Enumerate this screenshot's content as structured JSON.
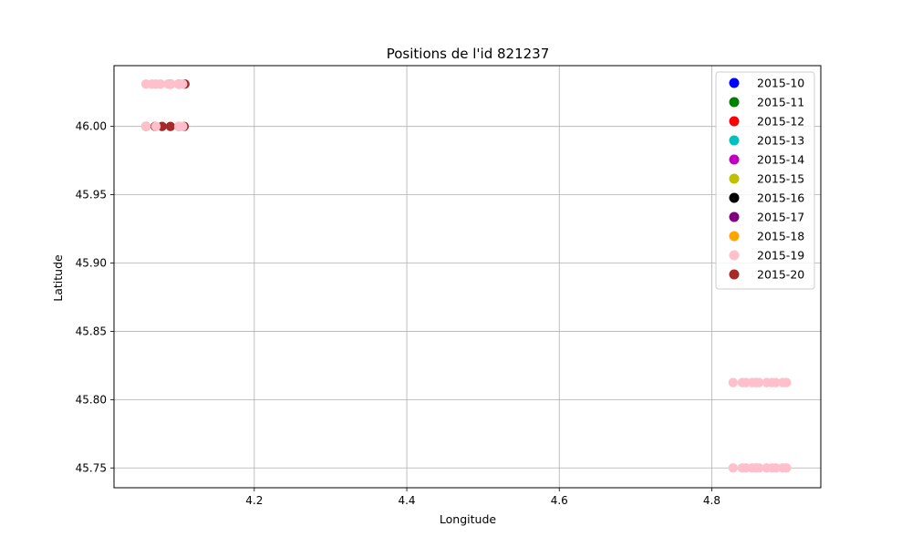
{
  "chart_data": {
    "type": "scatter",
    "title": "Positions de l'id 821237",
    "xlabel": "Longitude",
    "ylabel": "Latitude",
    "xlim": [
      4.016,
      4.943
    ],
    "ylim": [
      45.7355,
      46.0445
    ],
    "xticks": [
      4.2,
      4.4,
      4.6,
      4.8
    ],
    "xtick_labels": [
      "4.2",
      "4.4",
      "4.6",
      "4.8"
    ],
    "yticks": [
      45.75,
      45.8,
      45.85,
      45.9,
      45.95,
      46.0
    ],
    "ytick_labels": [
      "45.75",
      "45.80",
      "45.85",
      "45.90",
      "45.95",
      "46.00"
    ],
    "grid": true,
    "legend_position": "top-right",
    "series": [
      {
        "name": "2015-10",
        "color": "#0000ff",
        "points": []
      },
      {
        "name": "2015-11",
        "color": "#008000",
        "points": []
      },
      {
        "name": "2015-12",
        "color": "#ff0000",
        "points": []
      },
      {
        "name": "2015-13",
        "color": "#00bfbf",
        "points": []
      },
      {
        "name": "2015-14",
        "color": "#bf00bf",
        "points": []
      },
      {
        "name": "2015-15",
        "color": "#bfbf00",
        "points": []
      },
      {
        "name": "2015-16",
        "color": "#000000",
        "points": []
      },
      {
        "name": "2015-17",
        "color": "#800080",
        "points": []
      },
      {
        "name": "2015-18",
        "color": "#ffa500",
        "points": []
      },
      {
        "name": "2015-20",
        "color": "#a52a2a",
        "points": [
          [
            4.058,
            46.0
          ],
          [
            4.07,
            46.0
          ],
          [
            4.079,
            46.0
          ],
          [
            4.09,
            46.0
          ],
          [
            4.101,
            46.0
          ],
          [
            4.108,
            46.0
          ],
          [
            4.09,
            46.031
          ],
          [
            4.101,
            46.031
          ],
          [
            4.109,
            46.031
          ]
        ]
      },
      {
        "name": "2015-19",
        "color": "#ffc0cb",
        "points": [
          [
            4.058,
            46.031
          ],
          [
            4.066,
            46.031
          ],
          [
            4.071,
            46.031
          ],
          [
            4.077,
            46.031
          ],
          [
            4.087,
            46.031
          ],
          [
            4.091,
            46.031
          ],
          [
            4.101,
            46.031
          ],
          [
            4.106,
            46.031
          ],
          [
            4.058,
            46.0
          ],
          [
            4.071,
            46.0
          ],
          [
            4.101,
            46.0
          ],
          [
            4.106,
            46.0
          ],
          [
            4.828,
            45.8125
          ],
          [
            4.84,
            45.8125
          ],
          [
            4.845,
            45.8125
          ],
          [
            4.853,
            45.8125
          ],
          [
            4.858,
            45.8125
          ],
          [
            4.862,
            45.8125
          ],
          [
            4.872,
            45.8125
          ],
          [
            4.879,
            45.8125
          ],
          [
            4.884,
            45.8125
          ],
          [
            4.893,
            45.8125
          ],
          [
            4.898,
            45.8125
          ],
          [
            4.828,
            45.75
          ],
          [
            4.84,
            45.75
          ],
          [
            4.845,
            45.75
          ],
          [
            4.853,
            45.75
          ],
          [
            4.858,
            45.75
          ],
          [
            4.862,
            45.75
          ],
          [
            4.872,
            45.75
          ],
          [
            4.879,
            45.75
          ],
          [
            4.884,
            45.75
          ],
          [
            4.893,
            45.75
          ],
          [
            4.898,
            45.75
          ]
        ]
      }
    ],
    "legend_order": [
      "2015-10",
      "2015-11",
      "2015-12",
      "2015-13",
      "2015-14",
      "2015-15",
      "2015-16",
      "2015-17",
      "2015-18",
      "2015-19",
      "2015-20"
    ]
  }
}
